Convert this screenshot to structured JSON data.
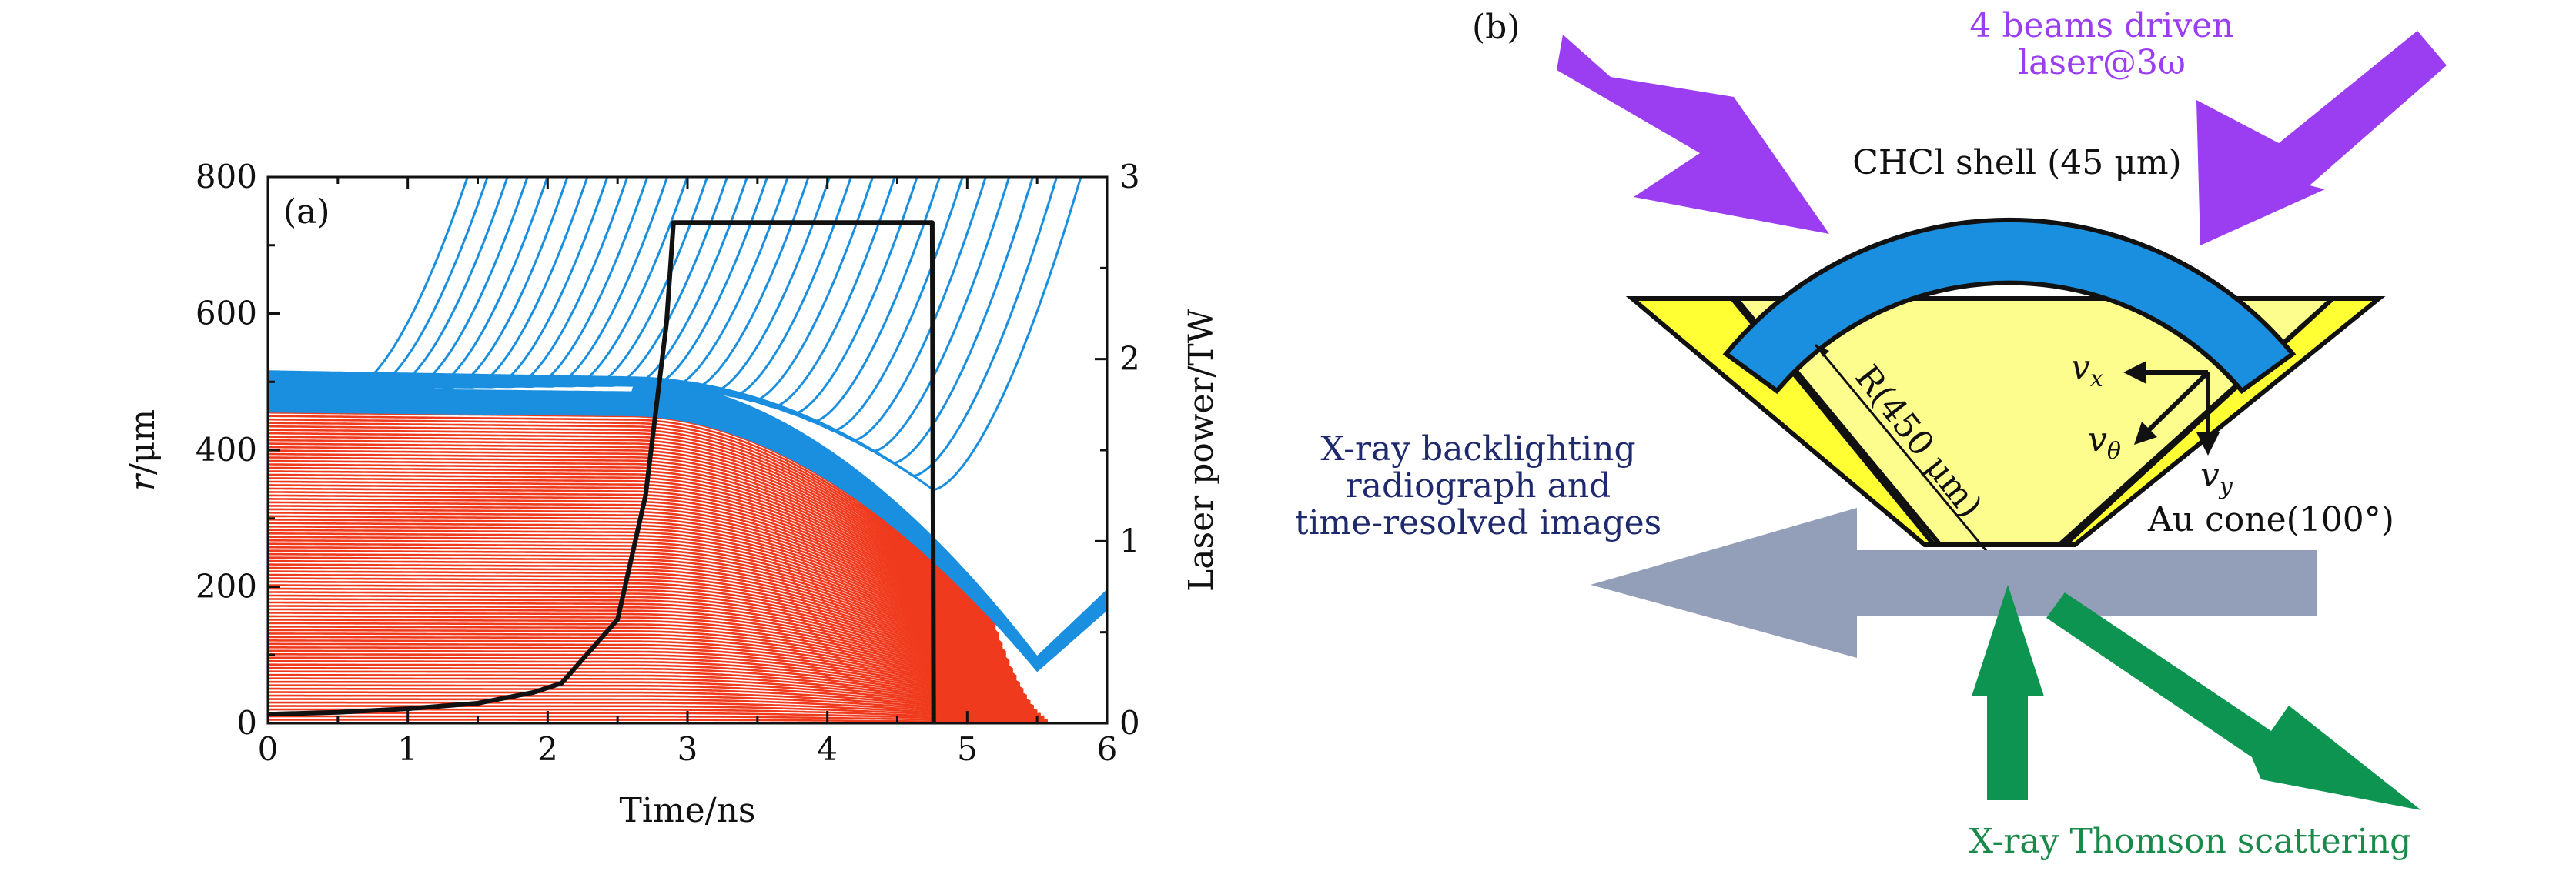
{
  "panel_a": {
    "label": "(a)",
    "x_axis": {
      "title": "Time/ns",
      "ticks": [
        "0",
        "1",
        "2",
        "3",
        "4",
        "5",
        "6"
      ]
    },
    "y_left": {
      "title_var": "r",
      "title_unit": "/μm",
      "ticks": [
        "0",
        "200",
        "400",
        "600",
        "800"
      ]
    },
    "y_right": {
      "title": "Laser power/TW",
      "ticks": [
        "0",
        "1",
        "2",
        "3"
      ]
    }
  },
  "chart_data": {
    "type": "line",
    "xlim": [
      0,
      6
    ],
    "ylim_left": [
      0,
      800
    ],
    "ylim_right": [
      0,
      3
    ],
    "grid": false,
    "legend": "none",
    "colors": {
      "ablator_zone_lines": "#1a8fe0",
      "shell_band": "#1a8fe0",
      "fuel_lines": "#f03a1e",
      "laser_power": "#111111"
    },
    "series": [
      {
        "axis": "right",
        "points": [
          [
            0,
            0.05
          ],
          [
            0.5,
            0.06
          ],
          [
            1.0,
            0.08
          ],
          [
            1.5,
            0.11
          ],
          [
            1.9,
            0.17
          ],
          [
            2.1,
            0.22
          ],
          [
            2.5,
            0.57
          ],
          [
            2.7,
            1.25
          ],
          [
            2.85,
            2.2
          ],
          [
            2.9,
            2.75
          ],
          [
            4.75,
            2.75
          ],
          [
            4.76,
            0
          ]
        ]
      }
    ],
    "zone_lines": {
      "axis": "left",
      "inner_radius_um": 455,
      "outer_radius_um": 492,
      "implosion_start_ns": 2.6,
      "stagnation_ns": 5.5,
      "min_radius_um": 75,
      "fuel_line_count": 90,
      "ablator_line_count": 30
    }
  },
  "panel_b": {
    "label": "(b)",
    "beams_label": [
      "4 beams driven",
      "laser@3ω"
    ],
    "shell_label": "CHCl shell (45 μm)",
    "radius_label": "R(450 μm)",
    "vx_var": "v",
    "vx_sub": "x",
    "vtheta_var": "v",
    "vtheta_sub": "θ",
    "vy_var": "v",
    "vy_sub": "y",
    "cone_label": "Au cone(100°)",
    "backlight_label": [
      "X-ray backlighting",
      "radiograph and",
      "time-resolved images"
    ],
    "thomson_label": "X-ray Thomson scattering",
    "colors": {
      "laser": "#9b3ef2",
      "shell": "#1a8fe0",
      "cone_fill": "#ffff33",
      "target_fill": "#fdfd8e",
      "backlight_arrow": "#939fb9",
      "thomson_arrow": "#0d9451",
      "backlight_text": "#1f2a6e",
      "thomson_text": "#1a8a4a",
      "laser_text": "#9b3ef2"
    }
  }
}
